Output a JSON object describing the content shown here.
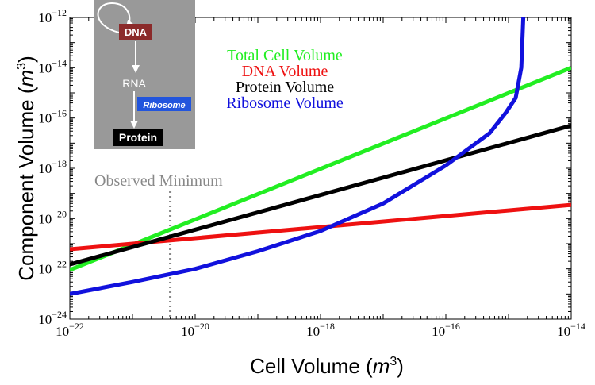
{
  "chart_data": {
    "type": "line",
    "xlabel": "Cell Volume",
    "xlabel_unit_base": "m",
    "xlabel_unit_exp": "3",
    "ylabel": "Component Volume",
    "ylabel_unit_base": "m",
    "ylabel_unit_exp": "3",
    "x_scale": "log",
    "y_scale": "log",
    "xlim": [
      1e-22,
      1e-14
    ],
    "ylim": [
      1e-24,
      1e-12
    ],
    "x_ticks": [
      {
        "base": "10",
        "exp": "−22",
        "value": 1e-22
      },
      {
        "base": "10",
        "exp": "−20",
        "value": 1e-20
      },
      {
        "base": "10",
        "exp": "−18",
        "value": 1e-18
      },
      {
        "base": "10",
        "exp": "−16",
        "value": 1e-16
      },
      {
        "base": "10",
        "exp": "−14",
        "value": 1e-14
      }
    ],
    "y_ticks": [
      {
        "base": "10",
        "exp": "−24",
        "value": 1e-24
      },
      {
        "base": "10",
        "exp": "−22",
        "value": 1e-22
      },
      {
        "base": "10",
        "exp": "−20",
        "value": 1e-20
      },
      {
        "base": "10",
        "exp": "−18",
        "value": 1e-18
      },
      {
        "base": "10",
        "exp": "−16",
        "value": 1e-16
      },
      {
        "base": "10",
        "exp": "−14",
        "value": 1e-14
      },
      {
        "base": "10",
        "exp": "−12",
        "value": 1e-12
      }
    ],
    "grid": false,
    "legend_position": "top-center",
    "series": [
      {
        "name": "Total Cell Volume",
        "color": "#22ee22",
        "x": [
          1e-22,
          1e-14
        ],
        "y": [
          9e-23,
          1e-14
        ]
      },
      {
        "name": "DNA Volume",
        "color": "#ee1111",
        "x": [
          1e-22,
          1e-14
        ],
        "y": [
          6e-22,
          3.5e-20
        ]
      },
      {
        "name": "Protein Volume",
        "color": "#000000",
        "x": [
          1e-22,
          1e-14
        ],
        "y": [
          1.5e-22,
          5e-17
        ]
      },
      {
        "name": "Ribosome Volume",
        "color": "#1111dd",
        "x": [
          1e-22,
          1e-21,
          1e-20,
          1e-19,
          1e-18,
          1e-17,
          1e-16,
          5e-16,
          9e-16,
          1.3e-15,
          1.6e-15,
          1.72e-15
        ],
        "y": [
          1e-23,
          3e-23,
          1e-22,
          5e-22,
          3.2e-21,
          4e-20,
          1.3e-18,
          2.5e-17,
          1.6e-16,
          6.3e-16,
          1e-14,
          1e-12
        ]
      }
    ],
    "annotations": [
      {
        "text": "Observed Minimum",
        "x": 4e-21,
        "style": "dotted-vertical-line",
        "color": "#888888"
      }
    ]
  },
  "inset": {
    "background": "#999999",
    "nodes": [
      {
        "label": "DNA",
        "fill": "#8b2a2a",
        "text_color": "#ffffff"
      },
      {
        "label": "RNA",
        "fill": "none",
        "text_color": "#ffffff"
      },
      {
        "label": "Ribosome",
        "fill": "#2255dd",
        "text_color": "#ffffff"
      },
      {
        "label": "Protein",
        "fill": "#000000",
        "text_color": "#ffffff"
      }
    ]
  }
}
